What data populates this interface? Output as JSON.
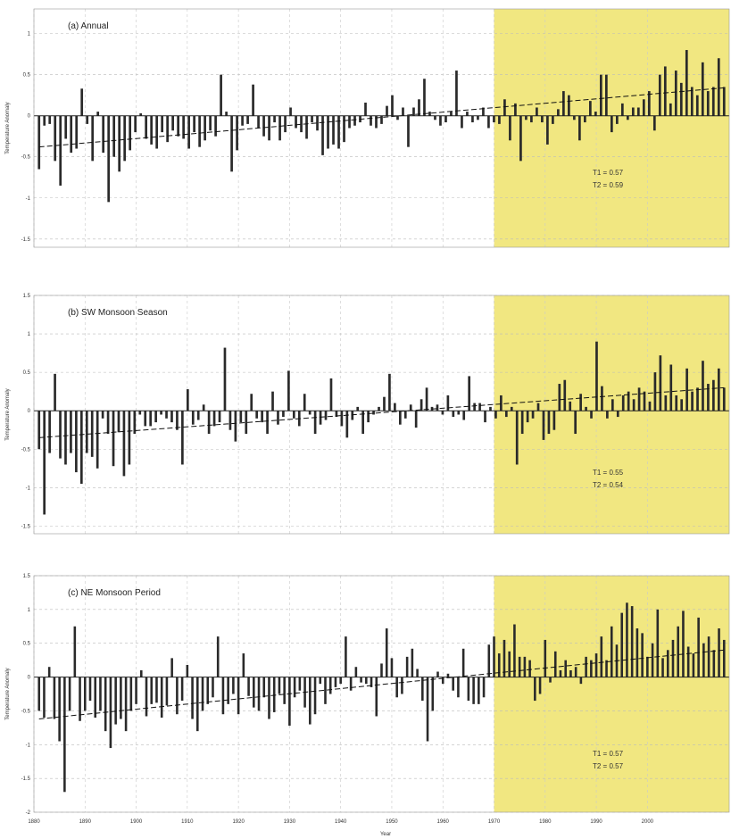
{
  "figure": {
    "xlabel": "Year",
    "shade_start": 1970,
    "highlight_color": "#efe36b"
  },
  "chart_data": [
    {
      "type": "bar",
      "title": "(a) Annual",
      "ylabel": "Temperature Anomaly",
      "ylim": [
        -1.6,
        1.3
      ],
      "xlim": [
        1880,
        2016
      ],
      "yticks": [
        "1",
        "0.5",
        "0",
        "-0.5",
        "-1",
        "-1.5"
      ],
      "ytick_values": [
        1,
        0.5,
        0,
        -0.5,
        -1,
        -1.5
      ],
      "xticks": [
        1880,
        1890,
        1900,
        1910,
        1920,
        1930,
        1940,
        1950,
        1960,
        1970,
        1980,
        1990,
        2000
      ],
      "x_range": [
        1881,
        2015
      ],
      "values": [
        -0.65,
        -0.12,
        -0.1,
        -0.55,
        -0.85,
        -0.28,
        -0.45,
        -0.4,
        0.33,
        -0.1,
        -0.55,
        0.05,
        -0.45,
        -1.05,
        -0.5,
        -0.68,
        -0.55,
        -0.42,
        -0.2,
        0.03,
        -0.28,
        -0.35,
        -0.4,
        -0.2,
        -0.32,
        -0.18,
        -0.25,
        -0.28,
        -0.4,
        -0.2,
        -0.38,
        -0.3,
        -0.18,
        -0.25,
        0.5,
        0.05,
        -0.68,
        -0.42,
        -0.12,
        -0.1,
        0.38,
        -0.15,
        -0.25,
        -0.3,
        -0.08,
        -0.3,
        -0.2,
        0.1,
        -0.15,
        -0.2,
        -0.28,
        -0.08,
        -0.18,
        -0.48,
        -0.4,
        -0.35,
        -0.4,
        -0.32,
        -0.15,
        -0.12,
        -0.08,
        0.16,
        -0.12,
        -0.15,
        -0.1,
        0.12,
        0.25,
        -0.05,
        0.1,
        -0.38,
        0.1,
        0.2,
        0.45,
        0.05,
        -0.05,
        -0.12,
        -0.08,
        0.05,
        0.55,
        -0.15,
        0.05,
        -0.08,
        -0.05,
        0.1,
        -0.15,
        -0.08,
        -0.1,
        0.2,
        -0.3,
        0.15,
        -0.55,
        -0.05,
        -0.08,
        0.1,
        -0.08,
        -0.35,
        -0.1,
        0.08,
        0.3,
        0.25,
        -0.05,
        -0.3,
        -0.08,
        0.18,
        0.05,
        0.5,
        0.5,
        -0.2,
        -0.1,
        0.15,
        -0.05,
        0.1,
        0.1,
        0.2,
        0.3,
        -0.18,
        0.5,
        0.6,
        0.15,
        0.55,
        0.4,
        0.8,
        0.35,
        0.25,
        0.65,
        0.3,
        0.35,
        0.7,
        0.35
      ],
      "trend": [
        -0.38,
        0.34
      ],
      "stats": [
        "T1 = 0.57",
        "T2 = 0.59"
      ]
    },
    {
      "type": "bar",
      "title": "(b) SW Monsoon Season",
      "ylabel": "Temperature Anomaly",
      "ylim": [
        -1.6,
        1.5
      ],
      "xlim": [
        1880,
        2016
      ],
      "yticks": [
        "1.5",
        "1",
        "0.5",
        "0",
        "-0.5",
        "-1",
        "-1.5"
      ],
      "ytick_values": [
        1.5,
        1,
        0.5,
        0,
        -0.5,
        -1,
        -1.5
      ],
      "xticks": [
        1880,
        1890,
        1900,
        1910,
        1920,
        1930,
        1940,
        1950,
        1960,
        1970,
        1980,
        1990,
        2000
      ],
      "x_range": [
        1881,
        2015
      ],
      "values": [
        -0.5,
        -1.35,
        -0.55,
        0.48,
        -0.62,
        -0.7,
        -0.55,
        -0.8,
        -0.95,
        -0.55,
        -0.6,
        -0.75,
        -0.1,
        -0.3,
        -0.72,
        -0.28,
        -0.85,
        -0.7,
        -0.3,
        -0.05,
        -0.2,
        -0.2,
        -0.15,
        -0.05,
        -0.1,
        -0.15,
        -0.25,
        -0.7,
        0.28,
        -0.18,
        -0.12,
        0.08,
        -0.3,
        -0.2,
        -0.15,
        0.82,
        -0.25,
        -0.4,
        -0.15,
        -0.3,
        0.22,
        -0.1,
        -0.15,
        -0.3,
        0.25,
        -0.18,
        -0.08,
        0.52,
        -0.1,
        -0.2,
        0.22,
        -0.05,
        -0.3,
        -0.18,
        -0.12,
        0.42,
        -0.08,
        -0.2,
        -0.35,
        -0.12,
        0.05,
        -0.3,
        -0.15,
        -0.05,
        0.05,
        0.18,
        0.48,
        0.1,
        -0.18,
        -0.1,
        0.08,
        -0.22,
        0.15,
        0.3,
        0.05,
        0.08,
        -0.05,
        0.2,
        -0.08,
        -0.05,
        -0.12,
        0.45,
        0.1,
        0.1,
        -0.15,
        0.05,
        -0.1,
        0.2,
        -0.08,
        0.05,
        -0.7,
        -0.3,
        -0.15,
        -0.1,
        0.1,
        -0.38,
        -0.3,
        -0.25,
        0.35,
        0.4,
        0.12,
        -0.3,
        0.22,
        0.05,
        -0.1,
        0.9,
        0.32,
        -0.1,
        0.15,
        -0.08,
        0.2,
        0.25,
        0.15,
        0.3,
        0.25,
        0.12,
        0.5,
        0.72,
        0.2,
        0.6,
        0.2,
        0.15,
        0.55,
        0.25,
        0.3,
        0.65,
        0.35,
        0.4,
        0.55,
        0.3
      ],
      "trend": [
        -0.35,
        0.3
      ],
      "stats": [
        "T1 = 0.55",
        "T2 = 0.54"
      ]
    },
    {
      "type": "bar",
      "title": "(c) NE Monsoon Period",
      "ylabel": "Temperature Anomaly",
      "ylim": [
        -2.0,
        1.5
      ],
      "xlim": [
        1880,
        2016
      ],
      "yticks": [
        "1.5",
        "1",
        "0.5",
        "0",
        "-0.5",
        "-1",
        "-1.5",
        "-2"
      ],
      "ytick_values": [
        1.5,
        1,
        0.5,
        0,
        -0.5,
        -1,
        -1.5,
        -2
      ],
      "xticks": [
        1880,
        1890,
        1900,
        1910,
        1920,
        1930,
        1940,
        1950,
        1960,
        1970,
        1980,
        1990,
        2000
      ],
      "xtick_labels": [
        "1880",
        "1890",
        "1900",
        "1910",
        "1920",
        "1930",
        "1940",
        "1950",
        "1960",
        "1970",
        "1980",
        "1990",
        "2000"
      ],
      "x_range": [
        1881,
        2015
      ],
      "values": [
        -0.5,
        -0.6,
        0.15,
        -0.62,
        -0.95,
        -1.7,
        -0.5,
        0.75,
        -0.65,
        -0.5,
        -0.35,
        -0.6,
        -0.5,
        -0.8,
        -1.05,
        -0.7,
        -0.62,
        -0.8,
        -0.5,
        -0.4,
        0.1,
        -0.58,
        -0.4,
        -0.38,
        -0.6,
        -0.42,
        0.28,
        -0.55,
        -0.35,
        0.18,
        -0.62,
        -0.8,
        -0.5,
        -0.4,
        -0.3,
        0.6,
        -0.55,
        -0.4,
        -0.25,
        -0.55,
        0.35,
        -0.28,
        -0.45,
        -0.5,
        -0.3,
        -0.62,
        -0.52,
        -0.25,
        -0.4,
        -0.72,
        -0.3,
        -0.2,
        -0.45,
        -0.7,
        -0.55,
        -0.1,
        -0.4,
        -0.25,
        -0.15,
        -0.1,
        0.6,
        -0.2,
        0.15,
        -0.08,
        -0.1,
        -0.15,
        -0.58,
        0.2,
        0.72,
        0.28,
        -0.3,
        -0.25,
        0.3,
        0.42,
        0.12,
        -0.35,
        -0.95,
        -0.5,
        0.08,
        -0.1,
        0.05,
        -0.2,
        -0.3,
        0.42,
        -0.35,
        -0.4,
        -0.4,
        -0.3,
        0.48,
        0.6,
        0.35,
        0.55,
        0.38,
        0.78,
        0.3,
        0.3,
        0.25,
        -0.35,
        -0.25,
        0.55,
        -0.08,
        0.38,
        0.1,
        0.25,
        0.1,
        0.15,
        -0.1,
        0.3,
        0.25,
        0.35,
        0.6,
        0.25,
        0.75,
        0.48,
        0.95,
        1.1,
        1.05,
        0.72,
        0.65,
        0.3,
        0.5,
        1.0,
        0.28,
        0.4,
        0.55,
        0.75,
        0.98,
        0.45,
        0.35,
        0.88,
        0.5,
        0.6,
        0.4,
        0.72,
        0.55
      ],
      "trend": [
        -0.62,
        0.4
      ],
      "stats": [
        "T1 = 0.57",
        "T2 = 0.57"
      ]
    }
  ]
}
